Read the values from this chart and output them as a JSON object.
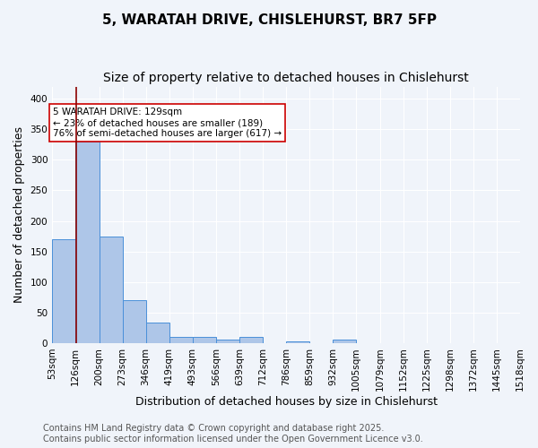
{
  "title1": "5, WARATAH DRIVE, CHISLEHURST, BR7 5FP",
  "title2": "Size of property relative to detached houses in Chislehurst",
  "xlabel": "Distribution of detached houses by size in Chislehurst",
  "ylabel": "Number of detached properties",
  "bin_edges": [
    53,
    126,
    200,
    273,
    346,
    419,
    493,
    566,
    639,
    712,
    786,
    859,
    932,
    1005,
    1079,
    1152,
    1225,
    1298,
    1372,
    1445,
    1518
  ],
  "bin_labels": [
    "53sqm",
    "126sqm",
    "200sqm",
    "273sqm",
    "346sqm",
    "419sqm",
    "493sqm",
    "566sqm",
    "639sqm",
    "712sqm",
    "786sqm",
    "859sqm",
    "932sqm",
    "1005sqm",
    "1079sqm",
    "1152sqm",
    "1225sqm",
    "1298sqm",
    "1372sqm",
    "1445sqm",
    "1518sqm"
  ],
  "bar_heights": [
    170,
    330,
    175,
    70,
    33,
    10,
    10,
    5,
    10,
    0,
    2,
    0,
    5,
    0,
    0,
    0,
    0,
    0,
    0,
    0
  ],
  "bar_color": "#aec6e8",
  "bar_edge_color": "#4a90d9",
  "property_size": 129,
  "vline_color": "#8b0000",
  "annotation_text": "5 WARATAH DRIVE: 129sqm\n← 23% of detached houses are smaller (189)\n76% of semi-detached houses are larger (617) →",
  "annotation_box_color": "#ffffff",
  "annotation_box_edge": "#cc0000",
  "ylim": [
    0,
    420
  ],
  "yticks": [
    0,
    50,
    100,
    150,
    200,
    250,
    300,
    350,
    400
  ],
  "footer1": "Contains HM Land Registry data © Crown copyright and database right 2025.",
  "footer2": "Contains public sector information licensed under the Open Government Licence v3.0.",
  "bg_color": "#f0f4fa",
  "plot_bg_color": "#f0f4fa",
  "title_fontsize": 11,
  "subtitle_fontsize": 10,
  "axis_label_fontsize": 9,
  "tick_fontsize": 7.5,
  "footer_fontsize": 7
}
